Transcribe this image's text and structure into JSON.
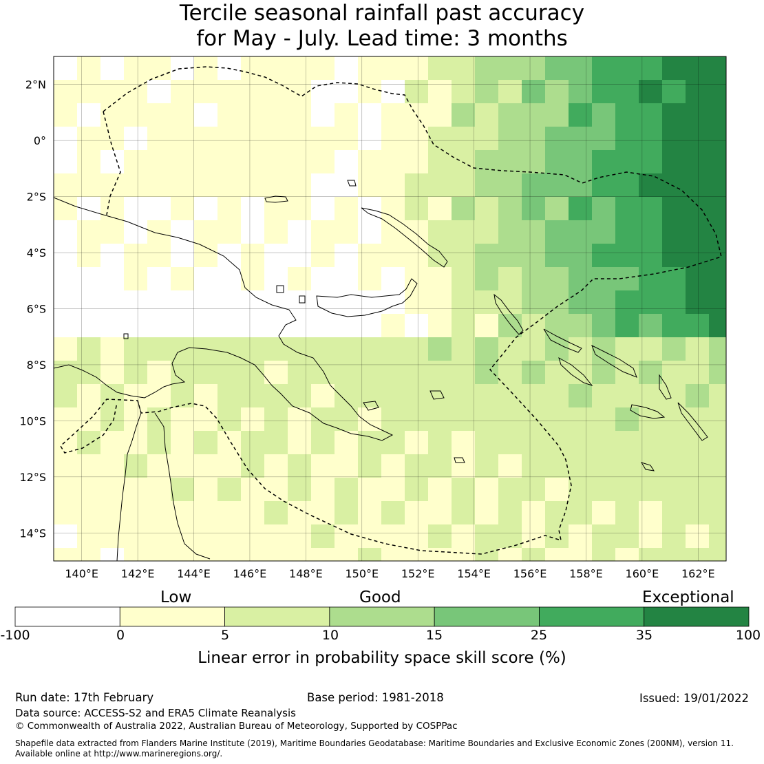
{
  "title": {
    "line1": "Tercile seasonal rainfall past accuracy",
    "line2": "for May - July. Lead time: 3 months"
  },
  "map": {
    "lon_range": [
      139,
      163
    ],
    "lat_range": [
      -15,
      3
    ],
    "lon_ticks": [
      "140°E",
      "142°E",
      "144°E",
      "146°E",
      "148°E",
      "150°E",
      "152°E",
      "154°E",
      "156°E",
      "158°E",
      "160°E",
      "162°E"
    ],
    "lat_ticks": [
      "2°N",
      "0°",
      "2°S",
      "4°S",
      "6°S",
      "8°S",
      "10°S",
      "12°S",
      "14°S"
    ]
  },
  "colorbar": {
    "category_labels": [
      "Low",
      "Good",
      "Exceptional"
    ],
    "bounds": [
      "-100",
      "0",
      "5",
      "10",
      "15",
      "25",
      "35",
      "100"
    ],
    "colors": [
      "#ffffff",
      "#ffffcc",
      "#d9f0a3",
      "#addd8e",
      "#78c679",
      "#41ab5d",
      "#238443"
    ],
    "title": "Linear error in probability space skill score (%)"
  },
  "footer": {
    "run_date": "Run date: 17th February",
    "base_period": "Base period: 1981-2018",
    "issued": "Issued: 19/01/2022",
    "data_source": "Data source: ACCESS-S2 and ERA5 Climate Reanalysis",
    "copyright": "© Commonwealth of Australia 2022, Australian Bureau of Meteorology, Supported by COSPPac",
    "shapefile_1": "Shapefile data extracted from Flanders Marine Institute (2019), Maritime Boundaries Geodatabase: Maritime Boundaries and Exclusive Economic Zones (200NM), version 11.",
    "shapefile_2": "Available online at http://www.marineregions.org/."
  }
}
